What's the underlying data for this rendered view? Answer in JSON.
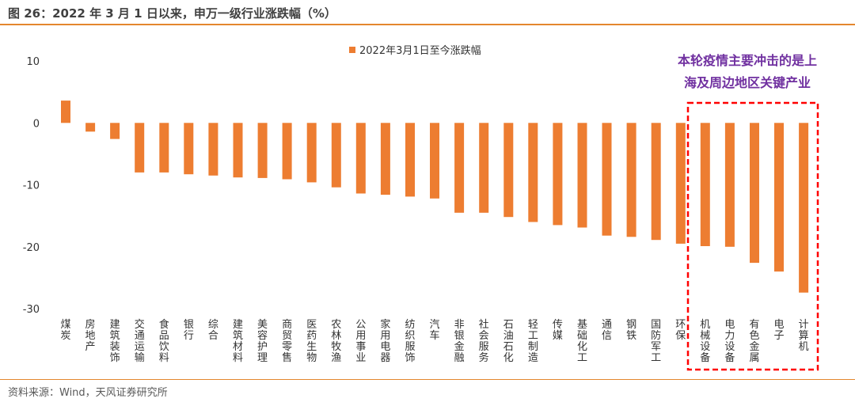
{
  "figure": {
    "title": "图 26：2022 年 3 月 1 日以来，申万一级行业涨跌幅（%）",
    "source": "资料来源：Wind，天风证券研究所"
  },
  "colors": {
    "bar": "#ed7d31",
    "rule": "#e4872e",
    "annotation": "#7030a0",
    "highlight_box": "#ff0000"
  },
  "annotation": {
    "lines": [
      "本轮疫情主要冲击的是上",
      "海及周边地区关键产业"
    ]
  },
  "chart_data": {
    "type": "bar",
    "title": "",
    "xlabel": "",
    "ylabel": "",
    "ylim": [
      -30,
      10
    ],
    "yticks": [
      10,
      0,
      -10,
      -20,
      -30
    ],
    "grid": false,
    "legend_position": "top-center",
    "categories": [
      "煤炭",
      "房地产",
      "建筑装饰",
      "交通运输",
      "食品饮料",
      "银行",
      "综合",
      "建筑材料",
      "美容护理",
      "商贸零售",
      "医药生物",
      "农林牧渔",
      "公用事业",
      "家用电器",
      "纺织服饰",
      "汽车",
      "非银金融",
      "社会服务",
      "石油石化",
      "轻工制造",
      "传媒",
      "基础化工",
      "通信",
      "钢铁",
      "国防军工",
      "环保",
      "机械设备",
      "电力设备",
      "有色金属",
      "电子",
      "计算机"
    ],
    "series": [
      {
        "name": "2022年3月1日至今涨跌幅",
        "values": [
          3.6,
          -1.4,
          -2.6,
          -8.0,
          -8.0,
          -8.3,
          -8.5,
          -8.8,
          -8.9,
          -9.1,
          -9.6,
          -10.4,
          -11.4,
          -11.6,
          -11.9,
          -12.2,
          -14.5,
          -14.5,
          -15.2,
          -16.0,
          -16.5,
          -16.9,
          -18.2,
          -18.4,
          -18.9,
          -19.5,
          -19.9,
          -20.0,
          -22.6,
          -24.0,
          -27.4
        ]
      }
    ],
    "highlighted_categories": [
      "机械设备",
      "电力设备",
      "有色金属",
      "电子",
      "计算机"
    ]
  }
}
